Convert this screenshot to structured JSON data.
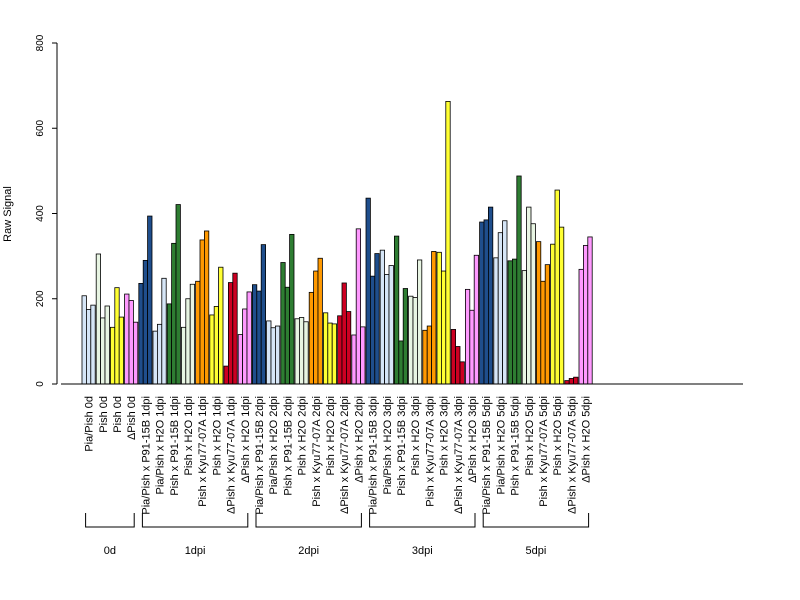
{
  "chart_data": {
    "type": "bar",
    "ylabel": "Raw Signal",
    "ylim": [
      0,
      800
    ],
    "yticks": [
      "0",
      "200",
      "400",
      "600",
      "800"
    ],
    "grid": false,
    "legend": "none",
    "colors": {
      "lightblue": "#d6e6f7",
      "white": "#ffffff",
      "darkblue": "#1f4e8c",
      "darkgreen": "#2e7d32",
      "palegreen": "#e8f5e3",
      "orange": "#ff9900",
      "yellow": "#ffff33",
      "red": "#cc0022",
      "pink": "#ff99ff"
    },
    "categories": [
      {
        "label": "Pia/Pish 0d",
        "color": "#d6e6f7",
        "values": [
          207,
          175,
          185
        ]
      },
      {
        "label": "Pish 0d",
        "color": "#e8f5e3",
        "values": [
          305,
          155,
          183
        ]
      },
      {
        "label": "Pish 0d",
        "color": "#ffff33",
        "values": [
          133,
          226,
          157
        ]
      },
      {
        "label": "ΔPish 0d",
        "color": "#ff99ff",
        "values": [
          211,
          196,
          145
        ]
      },
      {
        "label": "Pia/Pish x P91-15B 1dpi",
        "color": "#1f4e8c",
        "values": [
          236,
          290,
          394
        ]
      },
      {
        "label": "Pia/Pish x H2O 1dpi",
        "color": "#d6e6f7",
        "values": [
          124,
          140,
          248
        ]
      },
      {
        "label": "Pish x P91-15B 1dpi",
        "color": "#2e7d32",
        "values": [
          188,
          330,
          421
        ]
      },
      {
        "label": "Pish x H2O 1dpi",
        "color": "#e8f5e3",
        "values": [
          133,
          200,
          234
        ]
      },
      {
        "label": "Pish x Kyu77-07A 1dpi",
        "color": "#ff9900",
        "values": [
          241,
          338,
          359
        ]
      },
      {
        "label": "Pish x H2O 1dpi",
        "color": "#ffff33",
        "values": [
          162,
          182,
          274
        ]
      },
      {
        "label": "ΔPish x Kyu77-07A 1dpi",
        "color": "#cc0022",
        "values": [
          42,
          238,
          260
        ]
      },
      {
        "label": "ΔPish x H2O 1dpi",
        "color": "#ff99ff",
        "values": [
          116,
          176,
          216
        ]
      },
      {
        "label": "Pia/Pish x P91-15B 2dpi",
        "color": "#1f4e8c",
        "values": [
          233,
          218,
          327
        ]
      },
      {
        "label": "Pia/Pish x H2O 2dpi",
        "color": "#d6e6f7",
        "values": [
          148,
          132,
          136
        ]
      },
      {
        "label": "Pish x P91-15B 2dpi",
        "color": "#2e7d32",
        "values": [
          285,
          227,
          351
        ]
      },
      {
        "label": "Pish x H2O 2dpi",
        "color": "#e8f5e3",
        "values": [
          153,
          156,
          146
        ]
      },
      {
        "label": "Pish x Kyu77-07A 2dpi",
        "color": "#ff9900",
        "values": [
          215,
          265,
          295
        ]
      },
      {
        "label": "Pish x H2O 2dpi",
        "color": "#ffff33",
        "values": [
          167,
          143,
          141
        ]
      },
      {
        "label": "ΔPish x Kyu77-07A 2dpi",
        "color": "#cc0022",
        "values": [
          160,
          237,
          170
        ]
      },
      {
        "label": "ΔPish x H2O 2dpi",
        "color": "#ff99ff",
        "values": [
          115,
          364,
          134
        ]
      },
      {
        "label": "Pia/Pish x P91-15B 3dpi",
        "color": "#1f4e8c",
        "values": [
          436,
          253,
          306
        ]
      },
      {
        "label": "Pia/Pish x H2O 3dpi",
        "color": "#d6e6f7",
        "values": [
          314,
          257,
          278
        ]
      },
      {
        "label": "Pish x P91-15B 3dpi",
        "color": "#2e7d32",
        "values": [
          347,
          101,
          224
        ]
      },
      {
        "label": "Pish x H2O 3dpi",
        "color": "#e8f5e3",
        "values": [
          206,
          203,
          291
        ]
      },
      {
        "label": "Pish x Kyu77-07A 3dpi",
        "color": "#ff9900",
        "values": [
          126,
          136,
          311
        ]
      },
      {
        "label": "Pish x H2O 3dpi",
        "color": "#ffff33",
        "values": [
          309,
          265,
          663
        ]
      },
      {
        "label": "ΔPish x Kyu77-07A 3dpi",
        "color": "#cc0022",
        "values": [
          128,
          88,
          52
        ]
      },
      {
        "label": "ΔPish x H2O 3dpi",
        "color": "#ff99ff",
        "values": [
          222,
          173,
          302
        ]
      },
      {
        "label": "Pia/Pish x P91-15B 5dpi",
        "color": "#1f4e8c",
        "values": [
          380,
          385,
          415
        ]
      },
      {
        "label": "Pia/Pish x H2O 5dpi",
        "color": "#d6e6f7",
        "values": [
          296,
          355,
          383
        ]
      },
      {
        "label": "Pish x P91-15B 5dpi",
        "color": "#2e7d32",
        "values": [
          289,
          293,
          488
        ]
      },
      {
        "label": "Pish x H2O 5dpi",
        "color": "#e8f5e3",
        "values": [
          266,
          415,
          376
        ]
      },
      {
        "label": "Pish x Kyu77-07A 5dpi",
        "color": "#ff9900",
        "values": [
          334,
          241,
          280
        ]
      },
      {
        "label": "Pish x H2O 5dpi",
        "color": "#ffff33",
        "values": [
          328,
          455,
          368
        ]
      },
      {
        "label": "ΔPish x Kyu77-07A 5dpi",
        "color": "#cc0022",
        "values": [
          8,
          13,
          16
        ]
      },
      {
        "label": "ΔPish x H2O 5dpi",
        "color": "#ff99ff",
        "values": [
          269,
          325,
          345
        ]
      }
    ],
    "groups": [
      {
        "label": "0d",
        "start": 0,
        "end": 3
      },
      {
        "label": "1dpi",
        "start": 4,
        "end": 11
      },
      {
        "label": "2dpi",
        "start": 12,
        "end": 19
      },
      {
        "label": "3dpi",
        "start": 20,
        "end": 27
      },
      {
        "label": "5dpi",
        "start": 28,
        "end": 35
      }
    ]
  }
}
